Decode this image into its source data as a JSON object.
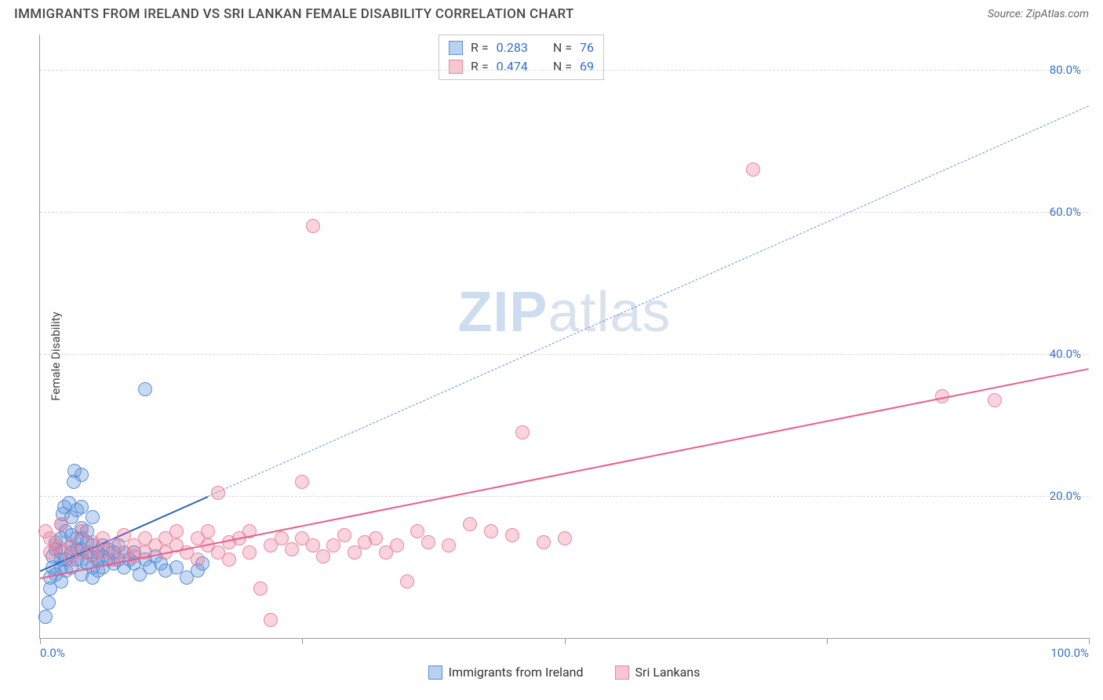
{
  "title": "IMMIGRANTS FROM IRELAND VS SRI LANKAN FEMALE DISABILITY CORRELATION CHART",
  "source_label": "Source: ZipAtlas.com",
  "y_axis_label": "Female Disability",
  "watermark_bold": "ZIP",
  "watermark_light": "atlas",
  "chart": {
    "type": "scatter-with-trend",
    "xlim": [
      0,
      100
    ],
    "ylim": [
      0,
      85
    ],
    "x_ticks": [
      0,
      25,
      50,
      75,
      100
    ],
    "x_tick_labels_shown": {
      "0": "0.0%",
      "100": "100.0%"
    },
    "y_ticks": [
      20,
      40,
      60,
      80
    ],
    "y_tick_labels": {
      "20": "20.0%",
      "40": "40.0%",
      "60": "60.0%",
      "80": "80.0%"
    },
    "grid_color": "#d8d8d8",
    "axis_color": "#9a9a9a",
    "background_color": "#ffffff",
    "tick_label_color": "#3b71c6",
    "point_radius": 9,
    "series": [
      {
        "name": "Immigrants from Ireland",
        "fill_color": "rgba(96,150,222,0.35)",
        "stroke_color": "#5a8fd6",
        "swatch_fill": "#b9d0ee",
        "swatch_border": "#5a8fd6",
        "R": "0.283",
        "N": "76",
        "trend": {
          "x1": 0,
          "y1": 9.5,
          "x2": 16,
          "y2": 20,
          "dash": false,
          "color": "#2f62c1",
          "width": 2.2
        },
        "trend_ext": {
          "x1": 16,
          "y1": 20,
          "x2": 100,
          "y2": 75,
          "dash": true,
          "color": "#6a93d9",
          "width": 1.5
        },
        "points": [
          [
            0.5,
            3
          ],
          [
            0.8,
            5
          ],
          [
            1,
            7
          ],
          [
            1,
            8.5
          ],
          [
            1.2,
            10
          ],
          [
            1.2,
            11.5
          ],
          [
            1.5,
            9
          ],
          [
            1.5,
            12.5
          ],
          [
            1.5,
            13.5
          ],
          [
            2,
            8
          ],
          [
            2,
            10
          ],
          [
            2,
            11
          ],
          [
            2,
            12
          ],
          [
            2,
            14
          ],
          [
            2,
            16
          ],
          [
            2.2,
            17.5
          ],
          [
            2.3,
            18.5
          ],
          [
            2.5,
            9.5
          ],
          [
            2.5,
            11
          ],
          [
            2.5,
            15
          ],
          [
            2.8,
            19
          ],
          [
            3,
            10
          ],
          [
            3,
            12
          ],
          [
            3,
            13
          ],
          [
            3,
            14.5
          ],
          [
            3,
            17
          ],
          [
            3.2,
            22
          ],
          [
            3.3,
            23.5
          ],
          [
            3.5,
            11
          ],
          [
            3.5,
            12.5
          ],
          [
            3.5,
            14
          ],
          [
            3.5,
            18
          ],
          [
            4,
            9
          ],
          [
            4,
            11
          ],
          [
            4,
            12.5
          ],
          [
            4,
            14
          ],
          [
            4,
            15.5
          ],
          [
            4,
            18.5
          ],
          [
            4,
            23
          ],
          [
            4.5,
            10.5
          ],
          [
            4.5,
            12
          ],
          [
            4.5,
            13.5
          ],
          [
            4.5,
            15
          ],
          [
            5,
            8.5
          ],
          [
            5,
            10
          ],
          [
            5,
            11.5
          ],
          [
            5,
            13
          ],
          [
            5,
            17
          ],
          [
            5.5,
            9.5
          ],
          [
            5.5,
            11
          ],
          [
            5.5,
            12
          ],
          [
            6,
            10
          ],
          [
            6,
            11.5
          ],
          [
            6,
            13
          ],
          [
            6.5,
            11
          ],
          [
            6.5,
            12.5
          ],
          [
            7,
            10.5
          ],
          [
            7,
            12
          ],
          [
            7.5,
            11
          ],
          [
            7.5,
            13
          ],
          [
            8,
            10
          ],
          [
            8,
            12
          ],
          [
            8.5,
            11
          ],
          [
            9,
            10.5
          ],
          [
            9,
            12
          ],
          [
            9.5,
            9
          ],
          [
            10,
            35
          ],
          [
            10,
            11
          ],
          [
            10.5,
            10
          ],
          [
            11,
            11.5
          ],
          [
            11.5,
            10.5
          ],
          [
            12,
            9.5
          ],
          [
            13,
            10
          ],
          [
            14,
            8.5
          ],
          [
            15,
            9.5
          ],
          [
            15.5,
            10.5
          ]
        ]
      },
      {
        "name": "Sri Lankans",
        "fill_color": "rgba(236,118,152,0.32)",
        "stroke_color": "#e887a1",
        "swatch_fill": "#f6c6d3",
        "swatch_border": "#e887a1",
        "R": "0.474",
        "N": "69",
        "trend": {
          "x1": 0,
          "y1": 8.5,
          "x2": 100,
          "y2": 38,
          "dash": false,
          "color": "#e85f8a",
          "width": 2.4
        },
        "points": [
          [
            0.5,
            15
          ],
          [
            1,
            12
          ],
          [
            1,
            14
          ],
          [
            1.5,
            13
          ],
          [
            2,
            12.5
          ],
          [
            2,
            16
          ],
          [
            3,
            11
          ],
          [
            3,
            13
          ],
          [
            4,
            12
          ],
          [
            4,
            15
          ],
          [
            5,
            11.5
          ],
          [
            5,
            13.5
          ],
          [
            6,
            12
          ],
          [
            6,
            14
          ],
          [
            7,
            11
          ],
          [
            7,
            13
          ],
          [
            8,
            12
          ],
          [
            8,
            14.5
          ],
          [
            9,
            11.5
          ],
          [
            9,
            13
          ],
          [
            10,
            12
          ],
          [
            10,
            14
          ],
          [
            11,
            13
          ],
          [
            12,
            12
          ],
          [
            12,
            14
          ],
          [
            13,
            13
          ],
          [
            13,
            15
          ],
          [
            14,
            12
          ],
          [
            15,
            14
          ],
          [
            15,
            11
          ],
          [
            16,
            13
          ],
          [
            16,
            15
          ],
          [
            17,
            12
          ],
          [
            17,
            20.5
          ],
          [
            18,
            13.5
          ],
          [
            18,
            11
          ],
          [
            19,
            14
          ],
          [
            20,
            12
          ],
          [
            20,
            15
          ],
          [
            21,
            7
          ],
          [
            22,
            13
          ],
          [
            22,
            2.5
          ],
          [
            23,
            14
          ],
          [
            24,
            12.5
          ],
          [
            25,
            22
          ],
          [
            25,
            14
          ],
          [
            26,
            13
          ],
          [
            27,
            11.5
          ],
          [
            28,
            13
          ],
          [
            29,
            14.5
          ],
          [
            30,
            12
          ],
          [
            31,
            13.5
          ],
          [
            32,
            14
          ],
          [
            33,
            12
          ],
          [
            34,
            13
          ],
          [
            35,
            8
          ],
          [
            36,
            15
          ],
          [
            37,
            13.5
          ],
          [
            39,
            13
          ],
          [
            41,
            16
          ],
          [
            43,
            15
          ],
          [
            45,
            14.5
          ],
          [
            46,
            29
          ],
          [
            48,
            13.5
          ],
          [
            50,
            14
          ],
          [
            26,
            58
          ],
          [
            68,
            66
          ],
          [
            86,
            34
          ],
          [
            91,
            33.5
          ]
        ]
      }
    ]
  },
  "legend": {
    "items": [
      {
        "label": "Immigrants from Ireland"
      },
      {
        "label": "Sri Lankans"
      }
    ]
  }
}
